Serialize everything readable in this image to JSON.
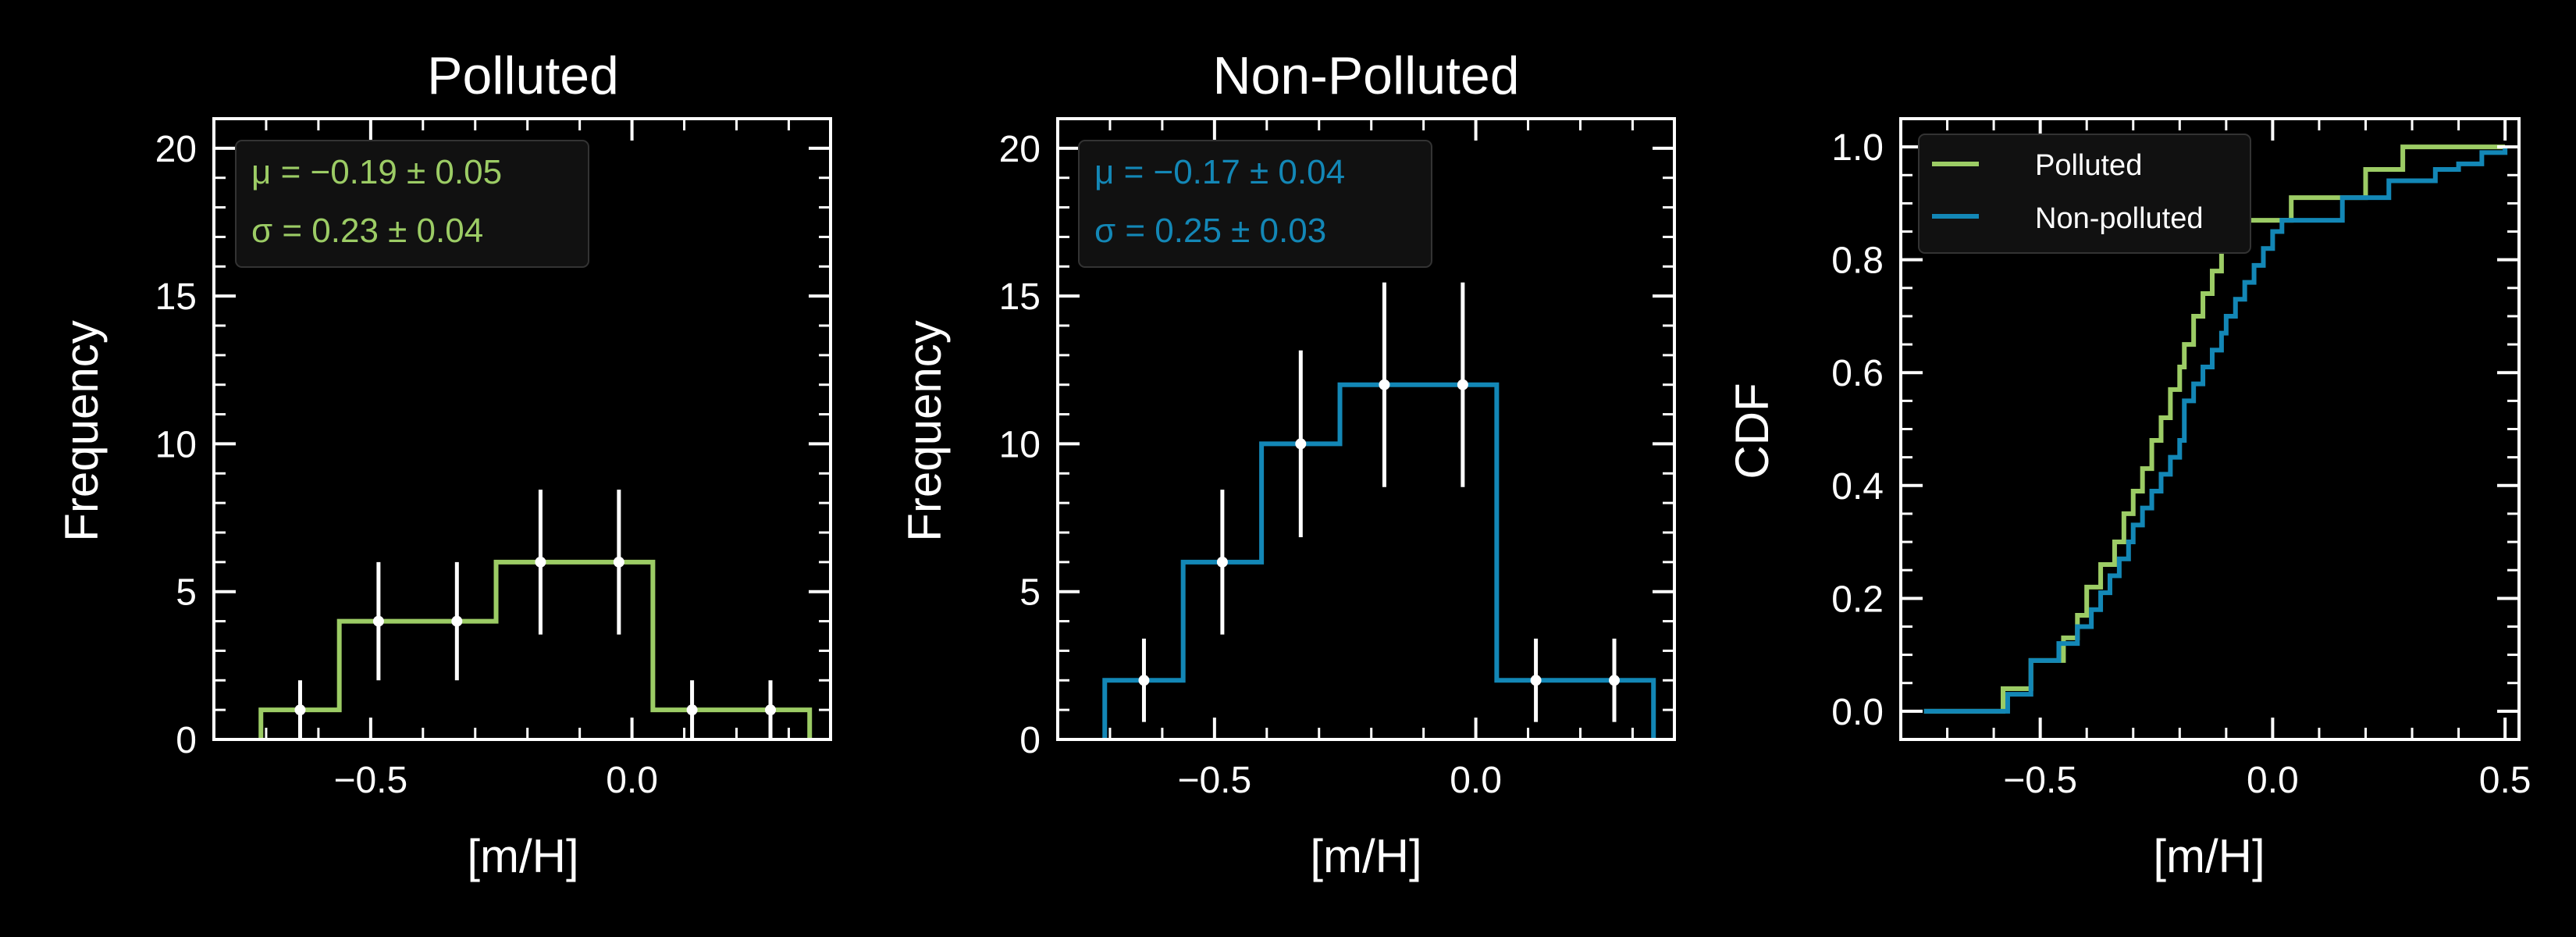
{
  "colors": {
    "polluted": "#9ccc65",
    "nonpolluted": "#1387b6",
    "errorbar": "#ffffff",
    "background": "#000000"
  },
  "chart_data": [
    {
      "type": "bar",
      "subtype": "step-histogram",
      "title": "Polluted",
      "xlabel": "[m/H]",
      "ylabel": "Frequency",
      "xlim": [
        -0.8,
        0.38
      ],
      "ylim": [
        0,
        21
      ],
      "xticks": [
        -0.5,
        0.0
      ],
      "xtick_labels": [
        "−0.5",
        "0.0"
      ],
      "yticks": [
        0,
        5,
        10,
        15,
        20
      ],
      "ytick_labels": [
        "0",
        "5",
        "10",
        "15",
        "20"
      ],
      "bin_edges": [
        -0.71,
        -0.56,
        -0.41,
        -0.26,
        -0.11,
        0.04,
        0.19,
        0.34
      ],
      "values": [
        1,
        4,
        4,
        6,
        6,
        1,
        1
      ],
      "errorbars": [
        {
          "x": -0.635,
          "y": 1,
          "err": 1.0
        },
        {
          "x": -0.485,
          "y": 4,
          "err": 2.0
        },
        {
          "x": -0.335,
          "y": 4,
          "err": 2.0
        },
        {
          "x": -0.175,
          "y": 6,
          "err": 2.45
        },
        {
          "x": -0.025,
          "y": 6,
          "err": 2.45
        },
        {
          "x": 0.115,
          "y": 1,
          "err": 1.0
        },
        {
          "x": 0.265,
          "y": 1,
          "err": 1.0
        }
      ],
      "annotation": {
        "mu": "μ = −0.19 ± 0.05",
        "sigma": "σ = 0.23 ± 0.04"
      },
      "color_key": "polluted"
    },
    {
      "type": "bar",
      "subtype": "step-histogram",
      "title": "Non-Polluted",
      "xlabel": "[m/H]",
      "ylabel": "Frequency",
      "xlim": [
        -0.8,
        0.38
      ],
      "ylim": [
        0,
        21
      ],
      "xticks": [
        -0.5,
        0.0
      ],
      "xtick_labels": [
        "−0.5",
        "0.0"
      ],
      "yticks": [
        0,
        5,
        10,
        15,
        20
      ],
      "ytick_labels": [
        "0",
        "5",
        "10",
        "15",
        "20"
      ],
      "bin_edges": [
        -0.71,
        -0.56,
        -0.41,
        -0.26,
        -0.11,
        0.04,
        0.19,
        0.34
      ],
      "values": [
        2,
        6,
        10,
        12,
        12,
        2,
        2
      ],
      "errorbars": [
        {
          "x": -0.635,
          "y": 2,
          "err": 1.41
        },
        {
          "x": -0.485,
          "y": 6,
          "err": 2.45
        },
        {
          "x": -0.335,
          "y": 10,
          "err": 3.16
        },
        {
          "x": -0.175,
          "y": 12,
          "err": 3.46
        },
        {
          "x": -0.025,
          "y": 12,
          "err": 3.46
        },
        {
          "x": 0.115,
          "y": 2,
          "err": 1.41
        },
        {
          "x": 0.265,
          "y": 2,
          "err": 1.41
        }
      ],
      "annotation": {
        "mu": "μ = −0.17 ± 0.04",
        "sigma": "σ = 0.25 ± 0.03"
      },
      "color_key": "nonpolluted"
    },
    {
      "type": "line",
      "subtype": "step-cdf",
      "title": "",
      "xlabel": "[m/H]",
      "ylabel": "CDF",
      "xlim": [
        -0.8,
        0.53
      ],
      "ylim": [
        -0.05,
        1.05
      ],
      "xticks": [
        -0.5,
        0.0,
        0.5
      ],
      "xtick_labels": [
        "−0.5",
        "0.0",
        "0.5"
      ],
      "yticks": [
        0.0,
        0.2,
        0.4,
        0.6,
        0.8,
        1.0
      ],
      "ytick_labels": [
        "0.0",
        "0.2",
        "0.4",
        "0.6",
        "0.8",
        "1.0"
      ],
      "legend_position": "top-left",
      "series": [
        {
          "name": "Polluted",
          "color_key": "polluted",
          "x": [
            -0.75,
            -0.58,
            -0.52,
            -0.45,
            -0.42,
            -0.4,
            -0.37,
            -0.34,
            -0.32,
            -0.3,
            -0.28,
            -0.26,
            -0.24,
            -0.22,
            -0.2,
            -0.19,
            -0.17,
            -0.15,
            -0.13,
            -0.11,
            -0.09,
            -0.06,
            -0.04,
            0.0,
            0.04,
            0.1,
            0.2,
            0.28,
            0.5
          ],
          "y": [
            0.0,
            0.04,
            0.09,
            0.13,
            0.17,
            0.22,
            0.26,
            0.3,
            0.35,
            0.39,
            0.43,
            0.48,
            0.52,
            0.57,
            0.61,
            0.65,
            0.7,
            0.74,
            0.78,
            0.83,
            0.87,
            0.87,
            0.87,
            0.87,
            0.91,
            0.91,
            0.96,
            1.0,
            1.0
          ]
        },
        {
          "name": "Non-polluted",
          "color_key": "nonpolluted",
          "x": [
            -0.75,
            -0.57,
            -0.52,
            -0.46,
            -0.42,
            -0.39,
            -0.37,
            -0.35,
            -0.33,
            -0.31,
            -0.3,
            -0.28,
            -0.26,
            -0.24,
            -0.22,
            -0.2,
            -0.19,
            -0.17,
            -0.15,
            -0.13,
            -0.11,
            -0.1,
            -0.08,
            -0.06,
            -0.04,
            -0.02,
            0.0,
            0.02,
            0.04,
            0.06,
            0.1,
            0.15,
            0.2,
            0.25,
            0.3,
            0.35,
            0.4,
            0.45,
            0.5
          ],
          "y": [
            0.0,
            0.03,
            0.09,
            0.12,
            0.15,
            0.18,
            0.21,
            0.24,
            0.27,
            0.3,
            0.33,
            0.36,
            0.39,
            0.42,
            0.45,
            0.48,
            0.55,
            0.58,
            0.61,
            0.64,
            0.67,
            0.7,
            0.73,
            0.76,
            0.79,
            0.82,
            0.85,
            0.87,
            0.87,
            0.87,
            0.87,
            0.91,
            0.91,
            0.94,
            0.94,
            0.96,
            0.97,
            0.99,
            1.0
          ]
        }
      ]
    }
  ]
}
